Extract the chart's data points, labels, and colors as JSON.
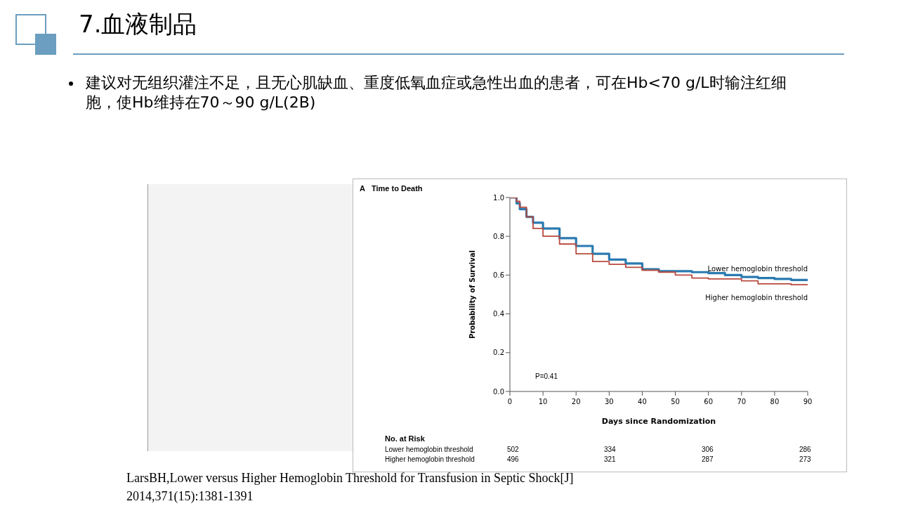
{
  "chart_data": {
    "type": "step",
    "title": "7.血液制品",
    "subtitle": "建议对无组织灌注不足，且无心肌缺血、重度低氧血症或急性出血的患者，可在Hb<70 g/L时输注红细胞，使Hb维持在70～90 g/L(2B)",
    "xlabel": "Days since Randomization",
    "ylabel": "Probability of Survival",
    "x": [
      0,
      1,
      2,
      3,
      5,
      7,
      10,
      15,
      20,
      25,
      30,
      35,
      40,
      45,
      50,
      55,
      60,
      65,
      70,
      75,
      80,
      85,
      90
    ],
    "series": [
      {
        "name": "Lower hemoglobin threshold",
        "color": "#2a7ab0",
        "values": [
          1.0,
          1.0,
          0.97,
          0.94,
          0.9,
          0.87,
          0.84,
          0.79,
          0.75,
          0.71,
          0.68,
          0.66,
          0.63,
          0.62,
          0.62,
          0.615,
          0.61,
          0.6,
          0.59,
          0.585,
          0.58,
          0.575,
          0.57
        ]
      },
      {
        "name": "Higher hemoglobin threshold",
        "color": "#b84a3e",
        "values": [
          1.0,
          1.0,
          0.98,
          0.95,
          0.9,
          0.84,
          0.8,
          0.76,
          0.71,
          0.67,
          0.655,
          0.64,
          0.625,
          0.615,
          0.6,
          0.585,
          0.58,
          0.58,
          0.57,
          0.555,
          0.555,
          0.55,
          0.55
        ]
      }
    ],
    "xlim": [
      0,
      90
    ],
    "xticks": [
      0,
      10,
      20,
      30,
      40,
      50,
      60,
      70,
      80,
      90
    ],
    "ylim": [
      0,
      1
    ],
    "yticks": [
      {
        "value": 0,
        "label": "0.0"
      },
      0.2,
      0.4,
      0.6,
      0.8,
      {
        "value": 1,
        "label": "1.0"
      }
    ],
    "marker": "none",
    "annotations": [
      "A",
      "Time to Death",
      "P=0.41",
      "No. at Risk",
      "Lower hemoglobin threshold",
      "502",
      "334",
      "306",
      "286",
      "Higher hemoglobin threshold",
      "496",
      "321",
      "287",
      "273",
      "LarsBH,Lower versus Higher Hemoglobin Threshold for Transfusion in Septic Shock[J]",
      "2014,371(15):1381-1391"
    ]
  }
}
